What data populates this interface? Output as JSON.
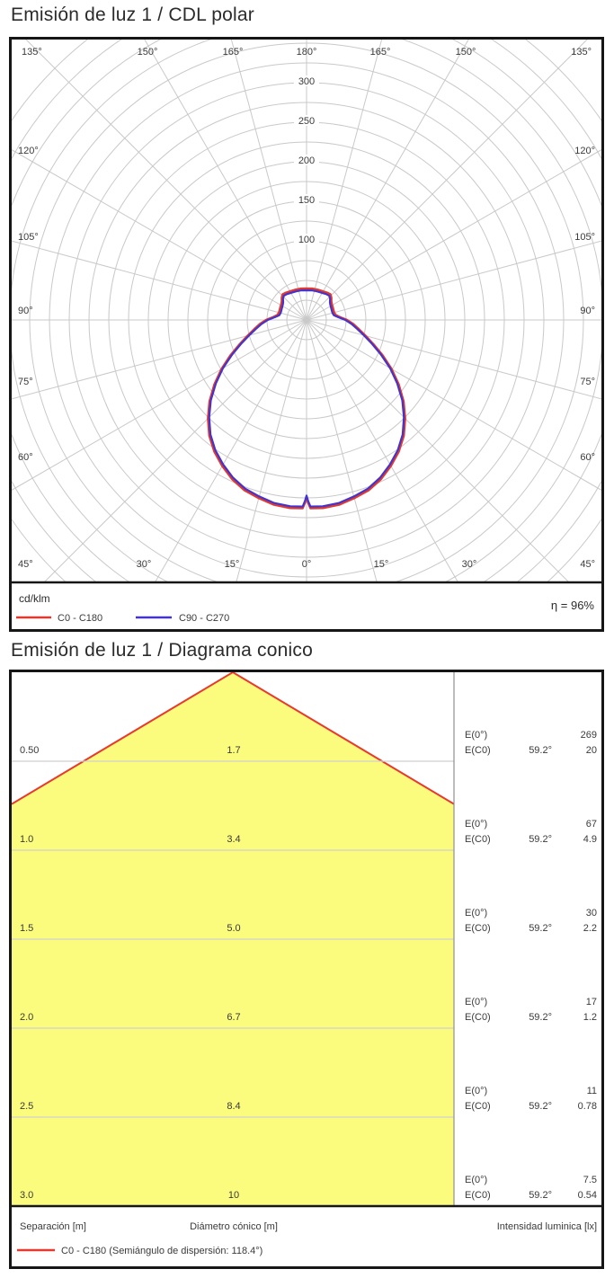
{
  "page": {
    "polar_title": "Emisión de luz 1 / CDL polar",
    "cone_title": "Emisión de luz 1 / Diagrama conico"
  },
  "chart_data": [
    {
      "type": "line",
      "subtype": "polar-intensity",
      "title": "Emisión de luz 1 / CDL polar",
      "units_label": "cd/klm",
      "efficiency_label": "η = 96%",
      "radial_ticks": [
        100,
        150,
        200,
        250,
        300
      ],
      "ring_step": 25,
      "spoke_step_deg": 15,
      "rlim": [
        0,
        460
      ],
      "angle_labels": {
        "top": [
          "135°",
          "150°",
          "165°",
          "180°",
          "165°",
          "150°",
          "135°"
        ],
        "left": [
          "120°",
          "105°",
          "90°",
          "75°",
          "60°",
          "45°"
        ],
        "right": [
          "120°",
          "105°",
          "90°",
          "75°",
          "60°",
          "45°"
        ],
        "bottom": [
          "30°",
          "15°",
          "0°",
          "15°",
          "30°"
        ]
      },
      "series": [
        {
          "name": "C0 - C180",
          "color": "#e2392e"
        },
        {
          "name": "C90 - C270",
          "color": "#4234cd"
        }
      ],
      "curve_points_gamma_cdklm": [
        [
          0,
          222
        ],
        [
          0.5,
          229
        ],
        [
          1.2,
          236
        ],
        [
          5,
          236.5
        ],
        [
          10,
          235
        ],
        [
          15,
          231
        ],
        [
          20,
          227
        ],
        [
          25,
          220
        ],
        [
          30,
          211
        ],
        [
          35,
          201
        ],
        [
          40,
          189
        ],
        [
          45,
          174
        ],
        [
          50,
          158
        ],
        [
          55,
          140
        ],
        [
          60,
          122
        ],
        [
          65,
          104
        ],
        [
          70,
          88
        ],
        [
          75,
          75
        ],
        [
          80,
          65
        ],
        [
          85,
          57
        ],
        [
          90,
          49
        ],
        [
          95,
          40
        ],
        [
          100,
          35
        ],
        [
          105,
          34
        ],
        [
          110,
          34
        ],
        [
          115,
          34.5
        ],
        [
          122,
          35.5
        ],
        [
          127,
          37
        ],
        [
          132,
          40
        ],
        [
          137,
          42
        ],
        [
          143,
          41
        ],
        [
          150,
          39.5
        ],
        [
          160,
          38.5
        ],
        [
          170,
          38
        ],
        [
          180,
          37.5
        ]
      ]
    },
    {
      "type": "table",
      "subtype": "cone-diagram",
      "title": "Emisión de luz 1 / Diagrama conico",
      "beam_semiangle_deg": 59.2,
      "beam_full_angle_deg": 118.4,
      "angle_value_label": "59.2°",
      "e0_label": "E(0°)",
      "ec0_label": "E(C0)",
      "columns": {
        "separation": "Separación [m]",
        "diameter": "Diámetro cónico [m]",
        "intensity": "Intensidad luminica [lx]"
      },
      "legend_label": "C0 - C180 (Semiángulo de dispersión: 118.4°)",
      "rows": [
        {
          "separation": "0.50",
          "diameter": "1.7",
          "e0": "269",
          "ec0": "20"
        },
        {
          "separation": "1.0",
          "diameter": "3.4",
          "e0": "67",
          "ec0": "4.9"
        },
        {
          "separation": "1.5",
          "diameter": "5.0",
          "e0": "30",
          "ec0": "2.2"
        },
        {
          "separation": "2.0",
          "diameter": "6.7",
          "e0": "17",
          "ec0": "1.2"
        },
        {
          "separation": "2.5",
          "diameter": "8.4",
          "e0": "11",
          "ec0": "0.78"
        },
        {
          "separation": "3.0",
          "diameter": "10",
          "e0": "7.5",
          "ec0": "0.54"
        }
      ],
      "cone_color": "#fbfb7e",
      "edge_color": "#e8392e"
    }
  ],
  "colors": {
    "grid": "#c9c9c9",
    "row_line": "#cfcfcf",
    "divider": "#8f8f8f",
    "border": "#161616",
    "text": "#3a3a3a"
  }
}
